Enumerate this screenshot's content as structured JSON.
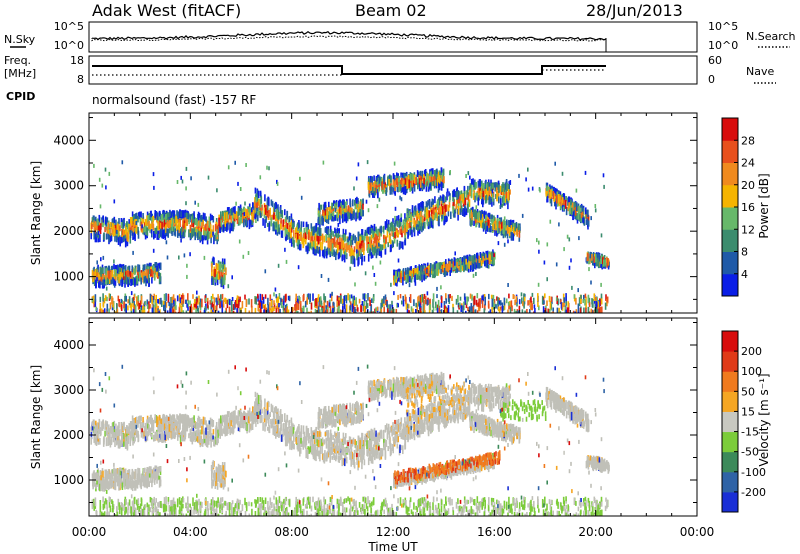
{
  "header": {
    "station": "Adak West (fitACF)",
    "beam": "Beam 02",
    "date": "28/Jun/2013"
  },
  "panels": {
    "nsky": {
      "left_label": "N.Sky",
      "right_label": "N.Search",
      "left_ticks": [
        "10^5",
        "10^0"
      ],
      "right_ticks": [
        "10^5",
        "10^0"
      ]
    },
    "freq": {
      "left_label_line1": "Freq.",
      "left_label_line2": "[MHz]",
      "right_label": "Nave",
      "left_ticks": [
        "18",
        "8"
      ],
      "right_ticks": [
        "60",
        "0"
      ]
    },
    "cpid": {
      "label": "CPID",
      "text": "normalsound (fast) -157 RF"
    }
  },
  "chart_data": [
    {
      "type": "heatmap",
      "quantity": "Power",
      "ylabel": "Slant Range [km]",
      "yticks": [
        "1000",
        "2000",
        "3000",
        "4000"
      ],
      "ylim": [
        200,
        4600
      ],
      "xlim_hours": [
        0,
        24
      ],
      "colorbar_label": "Power [dB]",
      "colorbar_ticks": [
        "4",
        "8",
        "12",
        "16",
        "20",
        "24",
        "28"
      ],
      "colorbar_colors": [
        "#0a1ee6",
        "#1f5aa8",
        "#3b8c6e",
        "#67b86a",
        "#f5b400",
        "#f08a1e",
        "#e8501c",
        "#d80c0c"
      ]
    },
    {
      "type": "heatmap",
      "quantity": "Velocity",
      "ylabel": "Slant Range [km]",
      "yticks": [
        "1000",
        "2000",
        "3000",
        "4000"
      ],
      "ylim": [
        200,
        4600
      ],
      "xlim_hours": [
        0,
        24
      ],
      "colorbar_label": "Velocity [m s⁻¹]",
      "colorbar_ticks": [
        "200",
        "100",
        "50",
        "15",
        "-15",
        "-50",
        "-100",
        "-200"
      ],
      "colorbar_colors": [
        "#1a2fd6",
        "#2f63a6",
        "#3c8a5a",
        "#7ccc3a",
        "#c8c8c0",
        "#f5a623",
        "#f07a1e",
        "#e03a18",
        "#d80c0c"
      ]
    }
  ],
  "xaxis": {
    "ticks": [
      "00:00",
      "04:00",
      "08:00",
      "12:00",
      "16:00",
      "20:00",
      "00:00"
    ],
    "label": "Time UT"
  },
  "colors": {
    "gray_scatter": "#c0c0b8"
  }
}
